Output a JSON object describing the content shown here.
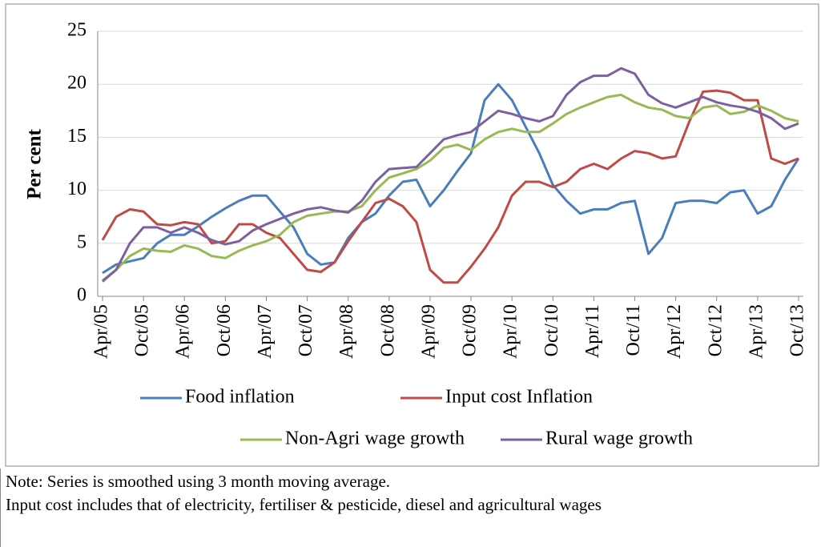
{
  "chart_data": {
    "type": "line",
    "y_label": "Per cent",
    "categories": [
      "Apr/05",
      null,
      null,
      "Oct/05",
      null,
      null,
      "Apr/06",
      null,
      null,
      "Oct/06",
      null,
      null,
      "Apr/07",
      null,
      null,
      "Oct/07",
      null,
      null,
      "Apr/08",
      null,
      null,
      "Oct/08",
      null,
      null,
      "Apr/09",
      null,
      null,
      "Oct/09",
      null,
      null,
      "Apr/10",
      null,
      null,
      "Oct/10",
      null,
      null,
      "Apr/11",
      null,
      null,
      "Oct/11",
      null,
      null,
      "Apr/12",
      null,
      null,
      "Oct/12",
      null,
      null,
      "Apr/13",
      null,
      null,
      "Oct/13"
    ],
    "ylim": [
      0,
      25
    ],
    "yticks": [
      0,
      5,
      10,
      15,
      20,
      25
    ],
    "grid": true,
    "series": [
      {
        "name": "Food inflation",
        "color": "#4a7ebb",
        "values": [
          2.2,
          3.0,
          3.3,
          3.6,
          5.0,
          5.8,
          5.8,
          6.6,
          7.5,
          8.3,
          9.0,
          9.5,
          9.5,
          8.0,
          6.5,
          4.0,
          3.0,
          3.2,
          5.5,
          7.0,
          7.8,
          9.5,
          10.8,
          11.0,
          8.5,
          10.0,
          11.8,
          13.5,
          18.5,
          20.0,
          18.5,
          16.0,
          13.5,
          10.5,
          9.0,
          7.8,
          8.2,
          8.2,
          8.8,
          9.0,
          4.0,
          5.5,
          8.8,
          9.0,
          9.0,
          8.8,
          9.8,
          10.0,
          7.8,
          8.5,
          11.0,
          13.0
        ]
      },
      {
        "name": "Input cost Inflation",
        "color": "#be4b48",
        "values": [
          5.3,
          7.5,
          8.2,
          8.0,
          6.8,
          6.7,
          7.0,
          6.8,
          5.0,
          5.2,
          6.8,
          6.8,
          6.0,
          5.5,
          4.0,
          2.5,
          2.3,
          3.2,
          5.2,
          7.0,
          8.8,
          9.2,
          8.5,
          7.0,
          2.5,
          1.3,
          1.3,
          2.8,
          4.5,
          6.5,
          9.5,
          10.8,
          10.8,
          10.3,
          10.8,
          12.0,
          12.5,
          12.0,
          13.0,
          13.7,
          13.5,
          13.0,
          13.2,
          16.5,
          19.3,
          19.4,
          19.2,
          18.5,
          18.5,
          13.0,
          12.5,
          13.0
        ]
      },
      {
        "name": "Non-Agri wage growth",
        "color": "#98b954",
        "values": [
          1.5,
          2.5,
          3.8,
          4.5,
          4.3,
          4.2,
          4.8,
          4.5,
          3.8,
          3.6,
          4.3,
          4.8,
          5.2,
          5.8,
          7.0,
          7.6,
          7.8,
          8.0,
          8.0,
          8.5,
          10.0,
          11.2,
          11.6,
          12.0,
          12.8,
          14.0,
          14.3,
          13.8,
          14.8,
          15.5,
          15.8,
          15.5,
          15.5,
          16.3,
          17.2,
          17.8,
          18.3,
          18.8,
          19.0,
          18.3,
          17.8,
          17.6,
          17.0,
          16.8,
          17.8,
          18.0,
          17.2,
          17.4,
          18.0,
          17.5,
          16.8,
          16.5
        ]
      },
      {
        "name": "Rural wage growth",
        "color": "#7d60a0",
        "values": [
          1.4,
          2.5,
          5.0,
          6.5,
          6.5,
          6.0,
          6.5,
          6.0,
          5.3,
          4.9,
          5.2,
          6.2,
          6.8,
          7.3,
          7.8,
          8.2,
          8.4,
          8.1,
          7.9,
          9.0,
          10.8,
          12.0,
          12.1,
          12.2,
          13.5,
          14.8,
          15.2,
          15.5,
          16.5,
          17.5,
          17.2,
          16.8,
          16.5,
          17.0,
          19.0,
          20.2,
          20.8,
          20.8,
          21.5,
          21.0,
          19.0,
          18.2,
          17.8,
          18.3,
          18.8,
          18.3,
          18.0,
          17.8,
          17.4,
          16.8,
          15.8,
          16.3
        ]
      }
    ]
  },
  "notes": [
    "Note: Series is smoothed using 3 month moving average.",
    "Input cost includes  that of electricity, fertiliser & pesticide, diesel and agricultural wages"
  ]
}
